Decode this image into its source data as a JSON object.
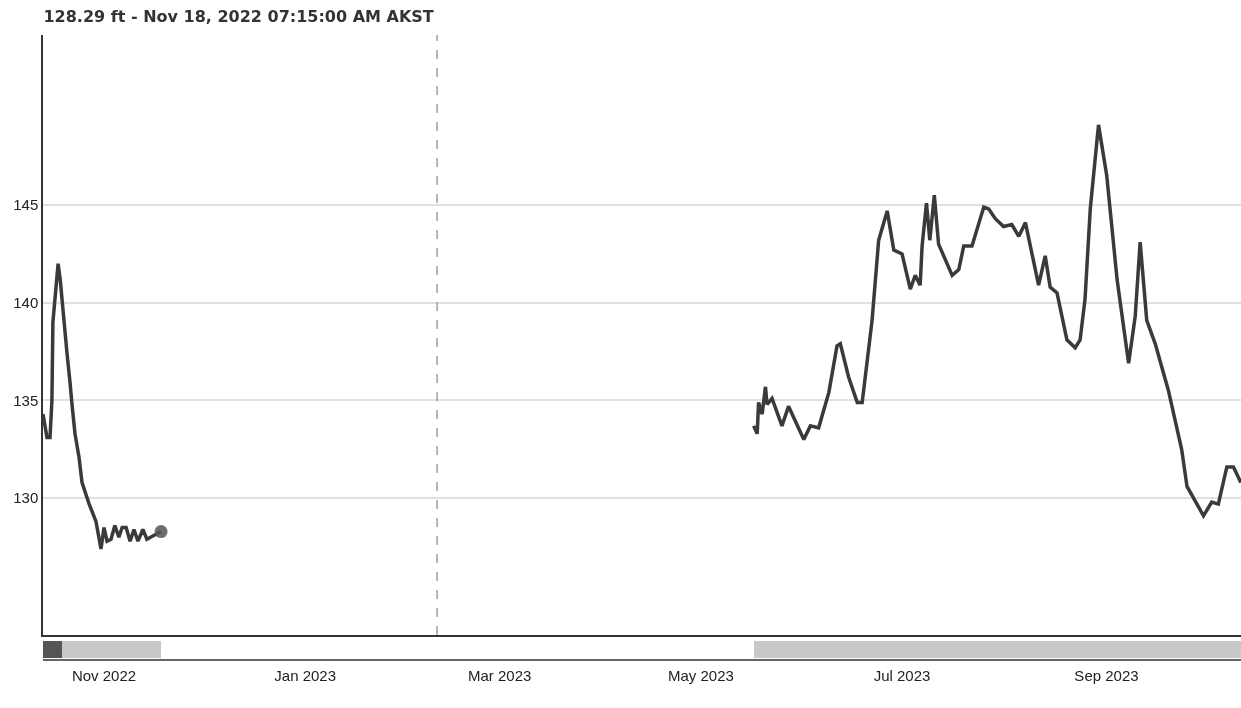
{
  "chart_data": {
    "type": "line",
    "title": "128.29 ft - Nov 18, 2022 07:15:00 AM AKST",
    "xlim": [
      "2022-10-13T12:00",
      "2023-10-11T19:00"
    ],
    "xticks": [
      {
        "value": "2022-11-01",
        "label": "Nov 2022"
      },
      {
        "value": "2023-01-01",
        "label": "Jan 2023"
      },
      {
        "value": "2023-03-01",
        "label": "Mar 2023"
      },
      {
        "value": "2023-05-01",
        "label": "May 2023"
      },
      {
        "value": "2023-07-01",
        "label": "Jul 2023"
      },
      {
        "value": "2023-09-01",
        "label": "Sep 2023"
      }
    ],
    "ylim": [
      123,
      153.7
    ],
    "yticks": [
      130,
      135,
      140,
      145
    ],
    "grid": "y",
    "marker": "none",
    "line_style": "solid",
    "series": [
      {
        "color": "#3a3a3a",
        "x": [
          "2022-10-13T12:00",
          "2022-10-14T17:00",
          "2022-10-15T15:00",
          "2022-10-16T05:00",
          "2022-10-16T12:00",
          "2022-10-18T02:00",
          "2022-10-18T17:00",
          "2022-10-19T22:00",
          "2022-10-20T19:00",
          "2022-10-21T17:00",
          "2022-10-22T07:00",
          "2022-10-23T05:00",
          "2022-10-24T10:00",
          "2022-10-25T08:00",
          "2022-10-27T12:00",
          "2022-10-29T14:00",
          "2022-10-31T02:00",
          "2022-11-01T00:00",
          "2022-11-01T22:00",
          "2022-11-03T03:00",
          "2022-11-04T07:00",
          "2022-11-05T12:00",
          "2022-11-06T12:00",
          "2022-11-07T17:00",
          "2022-11-08T22:00",
          "2022-11-10T02:00",
          "2022-11-11T07:00",
          "2022-11-12T19:00",
          "2022-11-14T00:00",
          "2022-11-16T05:00",
          "2022-11-18T07:15",
          "2023-02-10T00:00",
          "2023-05-17T00:00",
          "2023-05-18T02:00",
          "2023-05-18T12:00",
          "2023-05-19T14:00",
          "2023-05-20T14:00",
          "2023-05-21T02:00",
          "2023-05-22T14:00",
          "2023-05-25T14:00",
          "2023-05-27T14:00",
          "2023-06-01T05:00",
          "2023-06-03T05:00",
          "2023-06-05T17:00",
          "2023-06-08T19:00",
          "2023-06-11T07:00",
          "2023-06-12T07:00",
          "2023-06-14T19:00",
          "2023-06-17T10:00",
          "2023-06-18T22:00",
          "2023-06-21T22:00",
          "2023-06-23T22:00",
          "2023-06-26T12:00",
          "2023-06-28T12:00",
          "2023-07-01T00:00",
          "2023-07-03T12:00",
          "2023-07-05T00:00",
          "2023-07-06T12:00",
          "2023-07-07T02:00",
          "2023-07-08T10:00",
          "2023-07-09T10:00",
          "2023-07-10T19:00",
          "2023-07-12T02:00",
          "2023-07-16T05:00",
          "2023-07-18T05:00",
          "2023-07-19T17:00",
          "2023-07-22T05:00",
          "2023-07-25T19:00",
          "2023-07-27T07:00",
          "2023-07-29T07:00",
          "2023-07-31T19:00",
          "2023-08-03T07:00",
          "2023-08-05T10:00",
          "2023-08-07T10:00",
          "2023-08-09T10:00",
          "2023-08-11T10:00",
          "2023-08-13T10:00",
          "2023-08-14T22:00",
          "2023-08-17T00:00",
          "2023-08-20T00:00",
          "2023-08-22T12:00",
          "2023-08-24T00:00",
          "2023-08-25T12:00",
          "2023-08-27T02:00",
          "2023-08-29T14:00",
          "2023-09-01T02:00",
          "2023-09-04T05:00",
          "2023-09-07T17:00",
          "2023-09-09T17:00",
          "2023-09-11T05:00",
          "2023-09-13T05:00",
          "2023-09-15T19:00",
          "2023-09-19T19:00",
          "2023-09-23T19:00",
          "2023-09-25T10:00",
          "2023-09-30T10:00",
          "2023-10-02T22:00",
          "2023-10-04T22:00",
          "2023-10-07T12:00",
          "2023-10-09T12:00",
          "2023-10-11T18:00"
        ],
        "values": [
          134.3,
          133.1,
          133.1,
          135.0,
          139.0,
          142.0,
          141.2,
          139.0,
          137.4,
          135.9,
          134.8,
          133.3,
          132.1,
          130.8,
          129.7,
          128.8,
          127.4,
          128.5,
          127.8,
          127.9,
          128.6,
          128.0,
          128.5,
          128.5,
          127.8,
          128.4,
          127.8,
          128.4,
          127.9,
          128.1,
          128.29,
          null,
          133.7,
          133.3,
          134.9,
          134.3,
          135.7,
          134.8,
          135.1,
          133.7,
          134.7,
          133.0,
          133.7,
          133.6,
          135.4,
          137.8,
          137.9,
          136.2,
          134.9,
          134.9,
          139.1,
          143.2,
          144.7,
          142.7,
          142.5,
          140.7,
          141.4,
          140.9,
          142.9,
          145.1,
          143.2,
          145.5,
          143.0,
          141.4,
          141.7,
          142.9,
          142.9,
          144.9,
          144.8,
          144.3,
          143.9,
          144.0,
          143.4,
          144.1,
          142.5,
          140.9,
          142.4,
          140.8,
          140.5,
          138.1,
          137.7,
          138.1,
          140.2,
          144.8,
          149.1,
          146.5,
          141.2,
          136.9,
          139.3,
          143.1,
          139.1,
          137.9,
          135.5,
          132.5,
          130.6,
          129.1,
          129.8,
          129.7,
          131.6,
          131.6,
          130.8
        ]
      },
      {
        "type": "scatter",
        "color": "#555555",
        "marker": "circle",
        "x": [
          "2022-11-18T07:15"
        ],
        "values": [
          128.29
        ]
      }
    ],
    "ref_lines": [
      {
        "axis": "x",
        "value": "2023-02-10",
        "color": "#888888",
        "line_style": "dashed"
      }
    ]
  }
}
